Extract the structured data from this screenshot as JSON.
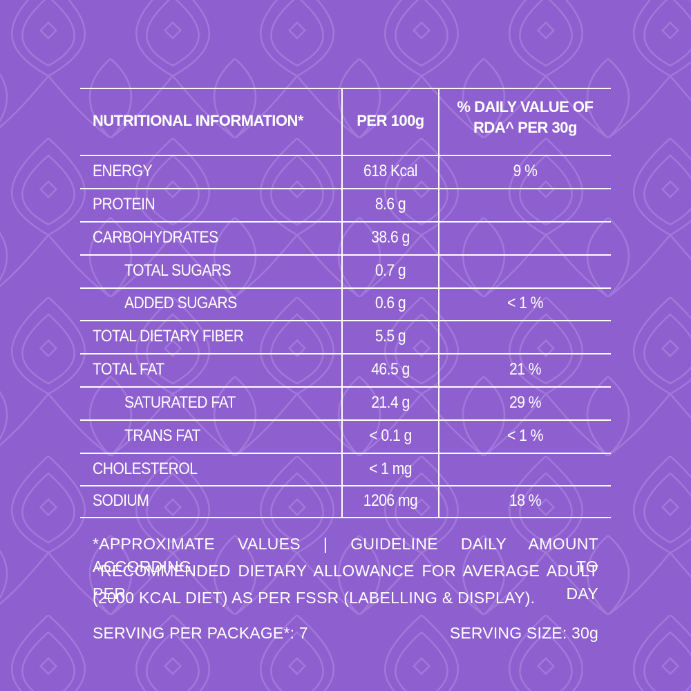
{
  "table": {
    "header": {
      "nutrient": "NUTRITIONAL INFORMATION*",
      "per100": "PER 100g",
      "rda_line1": "% DAILY VALUE OF",
      "rda_line2": "RDA^ PER 30g"
    },
    "rows": [
      {
        "name": "ENERGY",
        "per100": "618 Kcal",
        "rda": "9 %",
        "indent": false
      },
      {
        "name": "PROTEIN",
        "per100": "8.6 g",
        "rda": "",
        "indent": false
      },
      {
        "name": "CARBOHYDRATES",
        "per100": "38.6 g",
        "rda": "",
        "indent": false
      },
      {
        "name": "TOTAL SUGARS",
        "per100": "0.7 g",
        "rda": "",
        "indent": true
      },
      {
        "name": "ADDED SUGARS",
        "per100": "0.6 g",
        "rda": "< 1 %",
        "indent": true
      },
      {
        "name": "TOTAL DIETARY FIBER",
        "per100": "5.5 g",
        "rda": "",
        "indent": false
      },
      {
        "name": "TOTAL FAT",
        "per100": "46.5 g",
        "rda": "21 %",
        "indent": false
      },
      {
        "name": "SATURATED FAT",
        "per100": "21.4 g",
        "rda": "29 %",
        "indent": true
      },
      {
        "name": "TRANS FAT",
        "per100": "< 0.1 g",
        "rda": "< 1 %",
        "indent": true
      },
      {
        "name": "CHOLESTEROL",
        "per100": "< 1 mg",
        "rda": "",
        "indent": false
      },
      {
        "name": "SODIUM",
        "per100": "1206 mg",
        "rda": "18 %",
        "indent": false
      }
    ]
  },
  "footnote": {
    "line1": "*APPROXIMATE VALUES | GUIDELINE DAILY AMOUNT ACCORDING TO",
    "line2": "^RECOMMENDED DIETARY ALLOWANCE FOR AVERAGE ADULT PER DAY",
    "line3": "(2000 KCAL DIET) AS PER FSSR (LABELLING & DISPLAY)."
  },
  "serving": {
    "per_package": "SERVING PER PACKAGE*: 7",
    "size": "SERVING SIZE: 30g"
  },
  "colors": {
    "background": "#8e5fcf",
    "pattern": "#a57ddc",
    "text": "#ffffff"
  }
}
